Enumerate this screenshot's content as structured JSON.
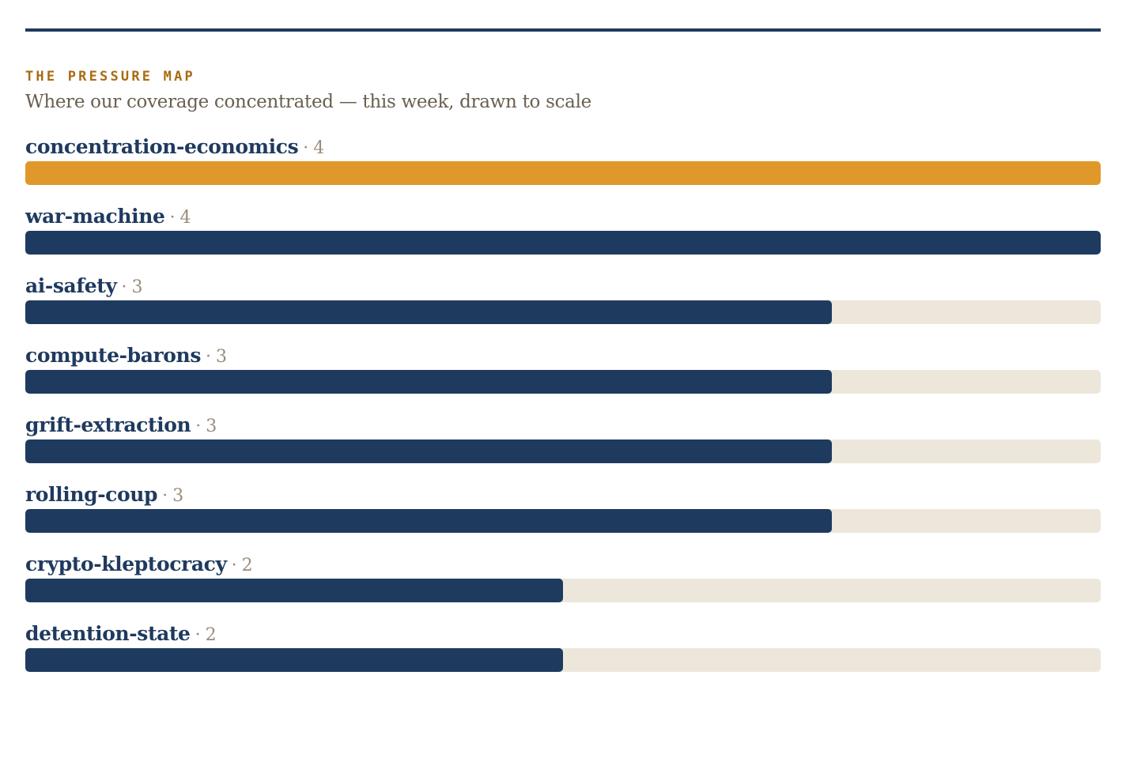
{
  "header": {
    "kicker": "THE PRESSURE MAP",
    "subtitle": "Where our coverage concentrated — this week, drawn to scale"
  },
  "colors": {
    "rule": "#1f3a5f",
    "highlight": "#e0982b",
    "bar": "#1f3a5f",
    "track": "#ede6db"
  },
  "chart_data": {
    "type": "bar",
    "orientation": "horizontal",
    "title": "THE PRESSURE MAP",
    "subtitle": "Where our coverage concentrated — this week, drawn to scale",
    "xlim": [
      0,
      4
    ],
    "grid": false,
    "highlighted_category": "concentration-economics",
    "categories": [
      "concentration-economics",
      "war-machine",
      "ai-safety",
      "compute-barons",
      "grift-extraction",
      "rolling-coup",
      "crypto-kleptocracy",
      "detention-state"
    ],
    "values": [
      4,
      4,
      3,
      3,
      3,
      3,
      2,
      2
    ]
  }
}
